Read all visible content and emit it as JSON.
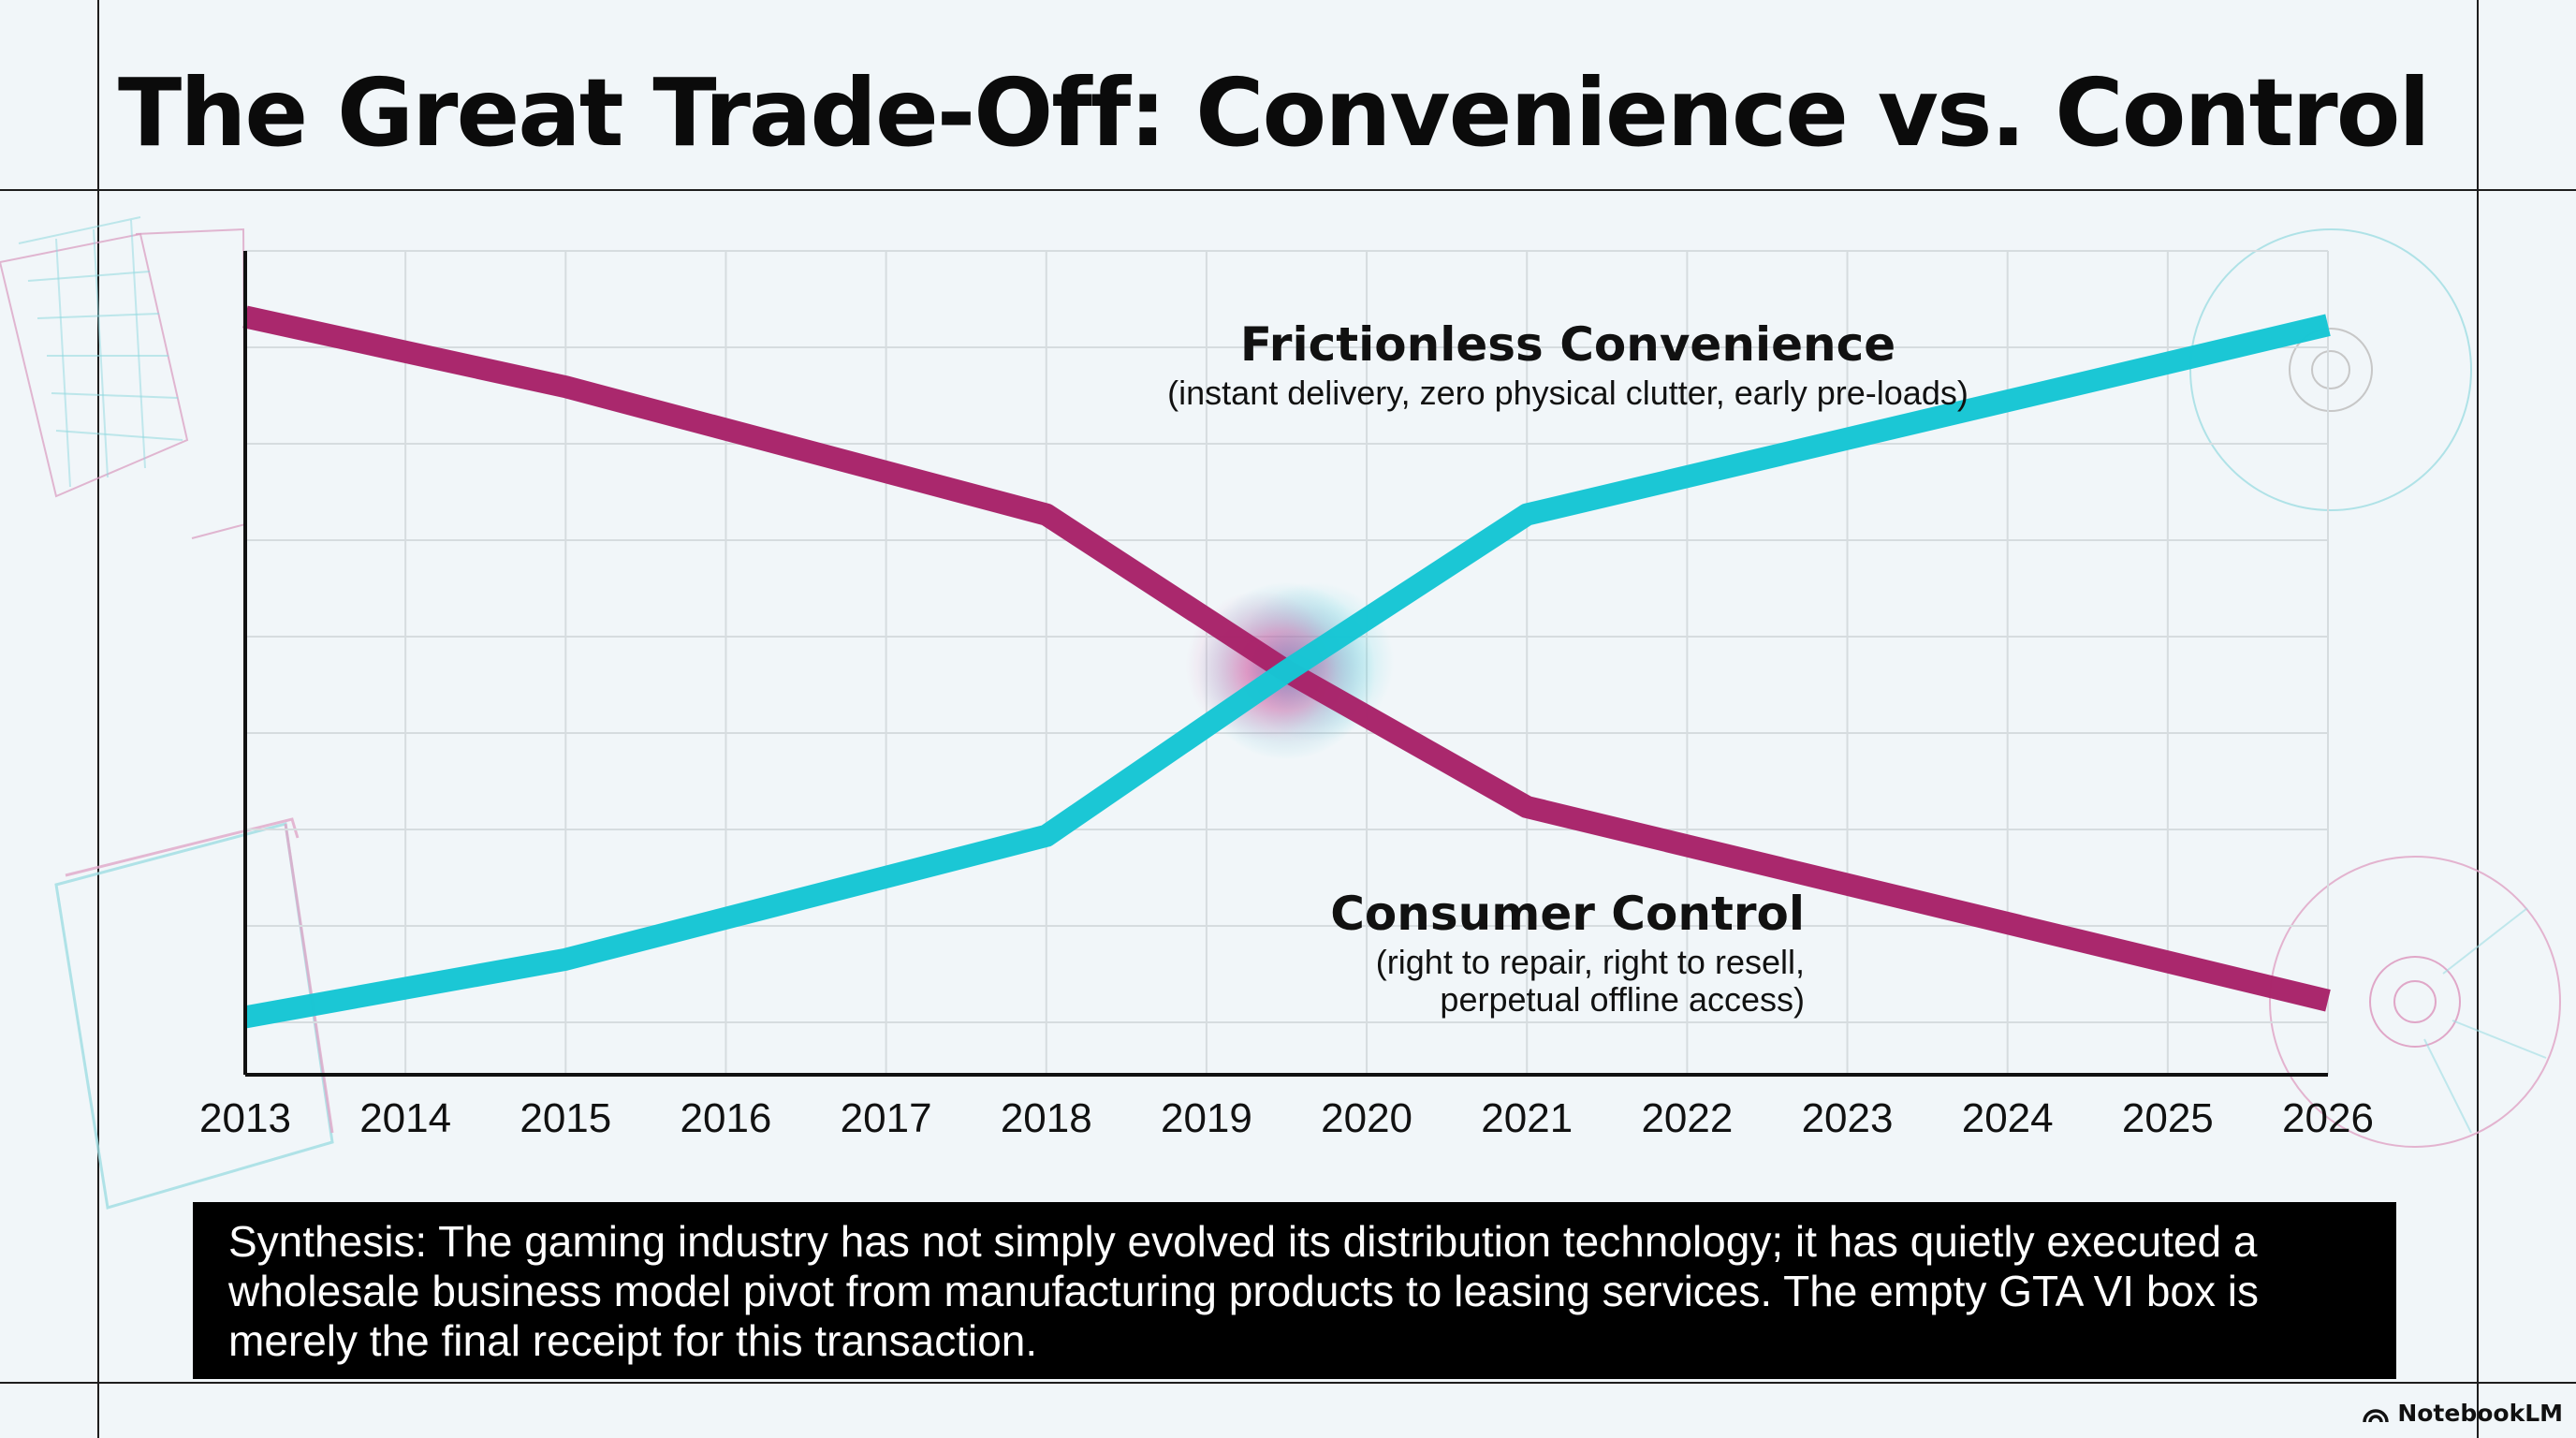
{
  "title": "The Great Trade-Off: Convenience vs. Control",
  "chart_data": {
    "type": "line",
    "x": [
      2013,
      2014,
      2015,
      2016,
      2017,
      2018,
      2019,
      2020,
      2021,
      2022,
      2023,
      2024,
      2025,
      2026
    ],
    "x_tick_labels": [
      "2013",
      "2014",
      "2015",
      "2016",
      "2017",
      "2018",
      "2019",
      "2020",
      "2021",
      "2022",
      "2023",
      "2024",
      "2025",
      "2026"
    ],
    "y_range": [
      0,
      100
    ],
    "grid": true,
    "series": [
      {
        "name": "Consumer Control",
        "color": "#a8246a",
        "points": [
          [
            2013,
            92
          ],
          [
            2015,
            83.5
          ],
          [
            2018,
            68
          ],
          [
            2019.5,
            49
          ],
          [
            2021,
            32.5
          ],
          [
            2026,
            9
          ]
        ]
      },
      {
        "name": "Frictionless Convenience",
        "color": "#16c6d4",
        "points": [
          [
            2013,
            7
          ],
          [
            2015,
            14
          ],
          [
            2018,
            29
          ],
          [
            2019.5,
            49
          ],
          [
            2021,
            68
          ],
          [
            2026,
            91
          ]
        ]
      }
    ],
    "annotations": [
      {
        "series": "Frictionless Convenience",
        "label": "Frictionless Convenience",
        "sublabel": [
          "(instant delivery, zero physical clutter, early pre-loads)"
        ]
      },
      {
        "series": "Consumer Control",
        "label": "Consumer Control",
        "sublabel": [
          "(right to repair, right to resell,",
          "perpetual offline access)"
        ]
      }
    ]
  },
  "synthesis": "Synthesis: The gaming industry has not simply evolved its distribution technology; it has quietly executed a wholesale business model pivot from manufacturing products to leasing services. The empty GTA VI box is merely the final receipt for this transaction.",
  "brand": "NotebookLM"
}
